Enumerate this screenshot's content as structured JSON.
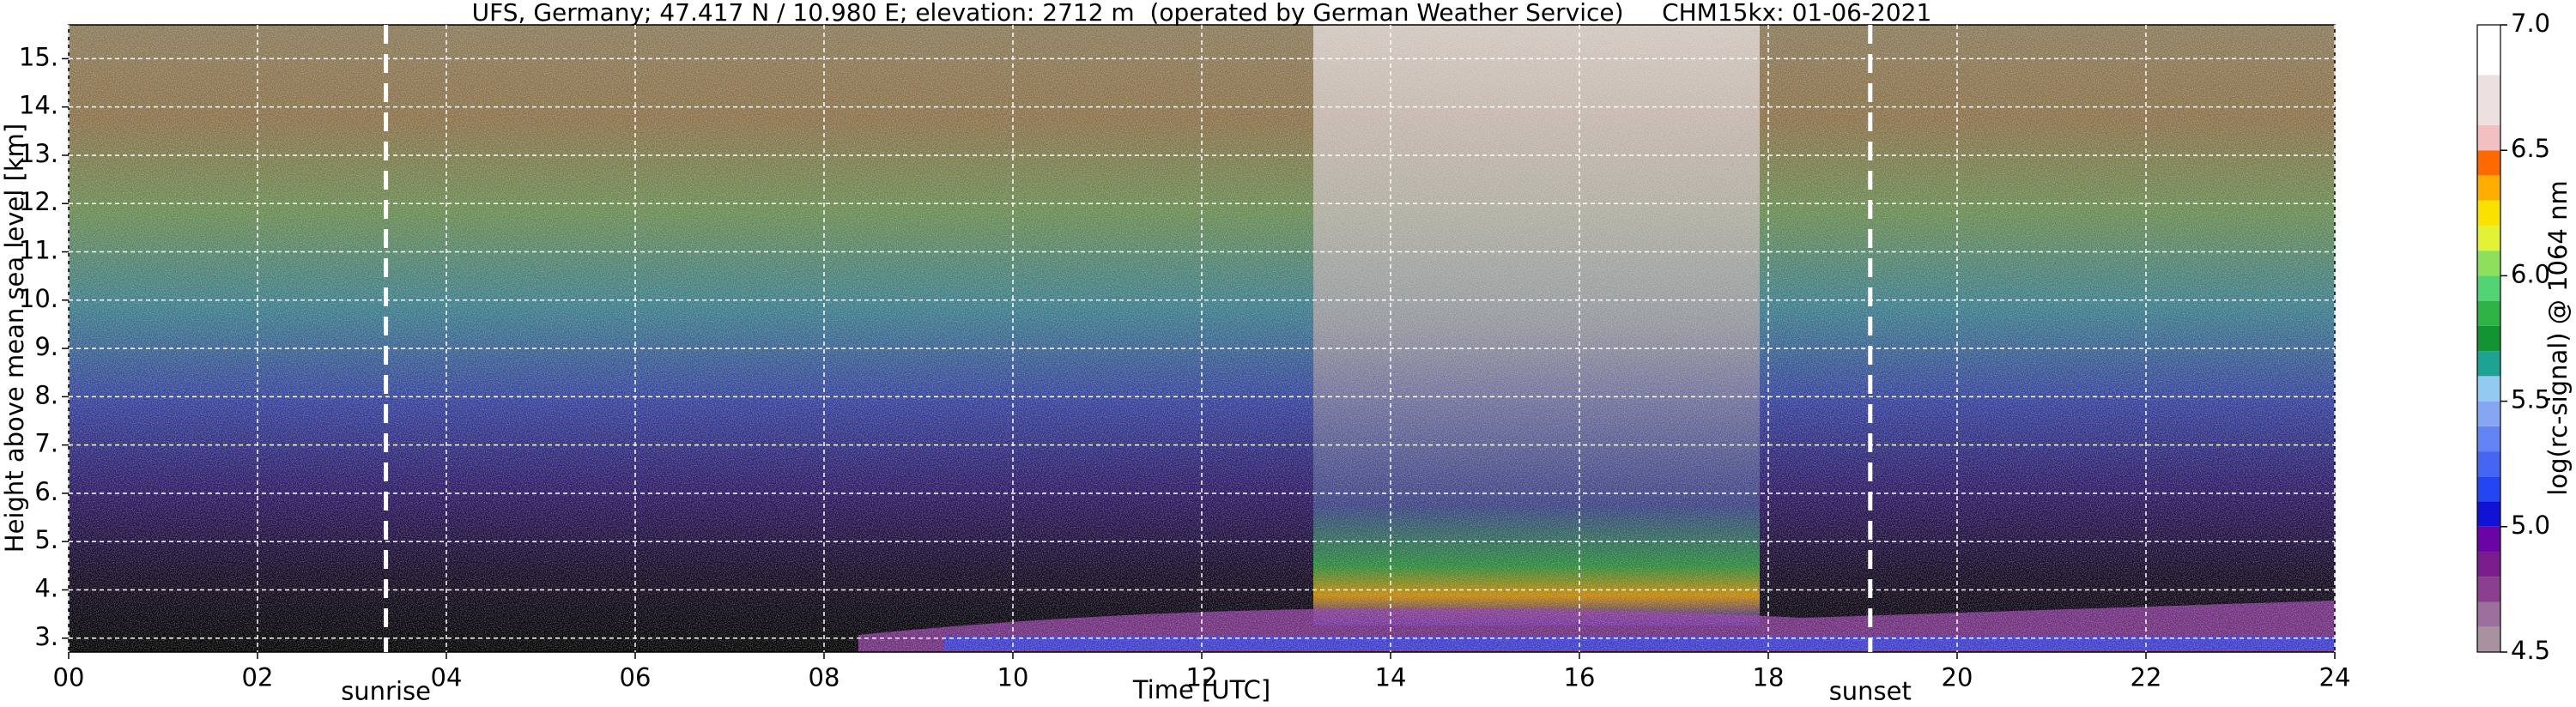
{
  "chart_data": {
    "type": "heatmap",
    "title": "UFS, Germany; 47.417 N / 10.980 E; elevation: 2712 m  (operated by German Weather Service)     CHM15kx: 01-06-2021",
    "x_label": "Time [UTC]",
    "y_label": "Height above mean sea level [km]",
    "xlim": [
      0,
      24
    ],
    "xticks": [
      {
        "value": 0,
        "label": "00"
      },
      {
        "value": 2,
        "label": "02"
      },
      {
        "value": 4,
        "label": "04"
      },
      {
        "value": 6,
        "label": "06"
      },
      {
        "value": 8,
        "label": "08"
      },
      10,
      12,
      14,
      16,
      18,
      20,
      22,
      24
    ],
    "ylim": [
      2.712,
      15.7
    ],
    "yticks": [
      {
        "value": 3,
        "label": "3."
      },
      {
        "value": 4,
        "label": "4."
      },
      {
        "value": 5,
        "label": "5."
      },
      {
        "value": 6,
        "label": "6."
      },
      {
        "value": 7,
        "label": "7."
      },
      {
        "value": 8,
        "label": "8."
      },
      {
        "value": 9,
        "label": "9."
      },
      {
        "value": 10,
        "label": "10."
      },
      {
        "value": 11,
        "label": "11."
      },
      {
        "value": 12,
        "label": "12."
      },
      {
        "value": 13,
        "label": "13."
      },
      {
        "value": 14,
        "label": "14."
      },
      {
        "value": 15,
        "label": "15."
      }
    ],
    "grid": true,
    "annotations": [
      {
        "text": "sunrise",
        "x": 3.36
      },
      {
        "text": "sunset",
        "x": 19.08
      }
    ],
    "colorbar": {
      "label": "log(rc-signal) @ 1064 nm",
      "lim": [
        4.5,
        7.0
      ],
      "ticks": [
        4.5,
        {
          "value": 5.0,
          "label": "5.0"
        },
        5.5,
        {
          "value": 6.0,
          "label": "6.0"
        },
        6.5,
        {
          "value": 7.0,
          "label": "7.0"
        }
      ],
      "bounds": [
        4.5,
        4.6,
        4.7,
        4.8,
        4.9,
        5.0,
        5.1,
        5.2,
        5.3,
        5.4,
        5.5,
        5.6,
        5.7,
        5.8,
        5.9,
        6.0,
        6.1,
        6.2,
        6.3,
        6.4,
        6.5,
        6.6,
        6.8,
        7.0
      ],
      "colors": [
        "#a8929f",
        "#9c6f9c",
        "#8c3f8e",
        "#7a1d8c",
        "#6a04a4",
        "#1212d6",
        "#2446f2",
        "#4466f2",
        "#6484f4",
        "#86a6f4",
        "#92caf2",
        "#1ea392",
        "#139433",
        "#2fb246",
        "#52d374",
        "#8ee05c",
        "#e4f236",
        "#fbe100",
        "#ffae00",
        "#ff6a00",
        "#f2c0c0",
        "#ece0e0",
        "#ffffff"
      ]
    }
  }
}
